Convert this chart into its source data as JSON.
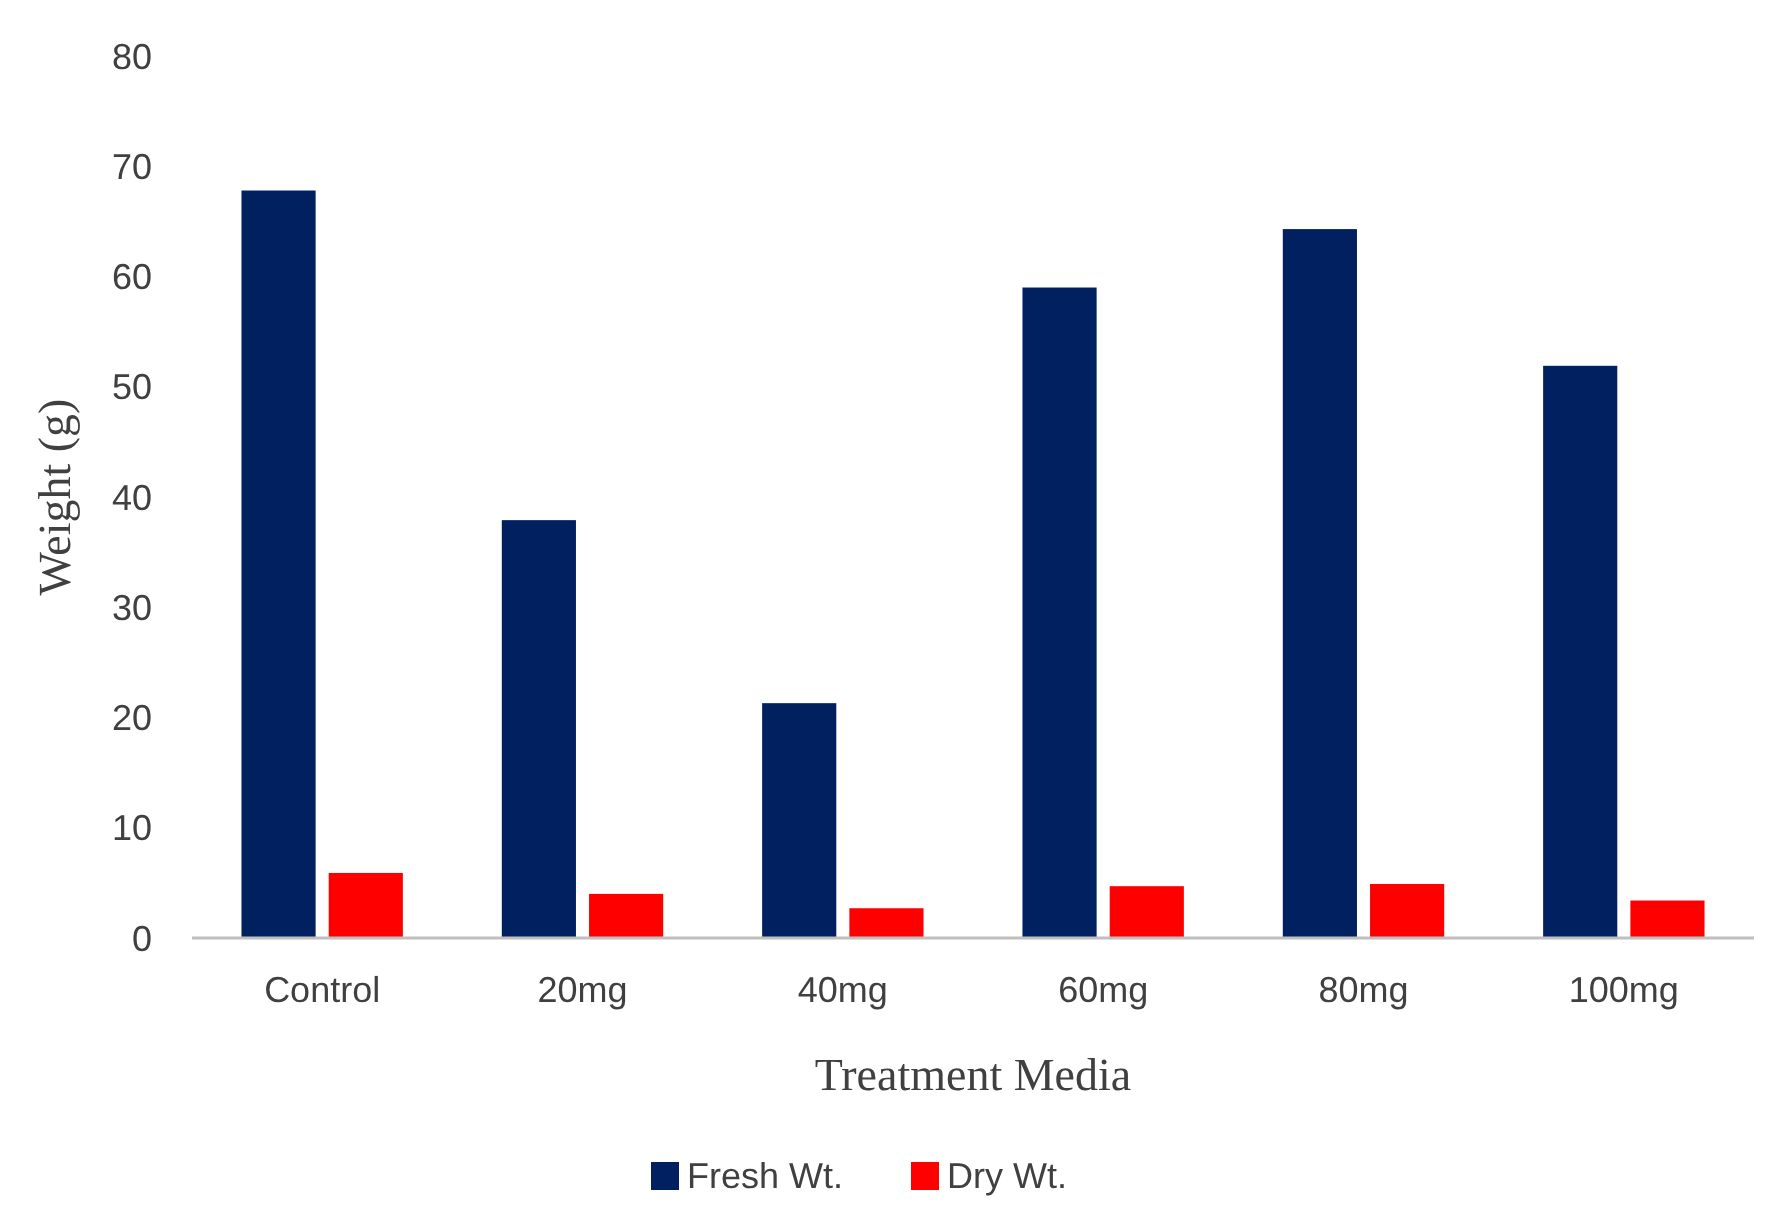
{
  "chart_data": {
    "type": "bar",
    "xlabel": "Treatment Media",
    "ylabel": "Weight (g)",
    "categories": [
      "Control",
      "20mg",
      "40mg",
      "60mg",
      "80mg",
      "100mg"
    ],
    "series": [
      {
        "name": "Fresh Wt.",
        "color": "#002060",
        "values": [
          67.8,
          37.9,
          21.3,
          59,
          64.3,
          51.9
        ]
      },
      {
        "name": "Dry Wt.",
        "color": "#ff0000",
        "values": [
          5.9,
          4,
          2.7,
          4.7,
          4.9,
          3.4
        ]
      }
    ],
    "ylim": [
      0,
      80
    ],
    "yticks": [
      0,
      10,
      20,
      30,
      40,
      50,
      60,
      70,
      80
    ],
    "grid": false,
    "legend": "bottom"
  }
}
